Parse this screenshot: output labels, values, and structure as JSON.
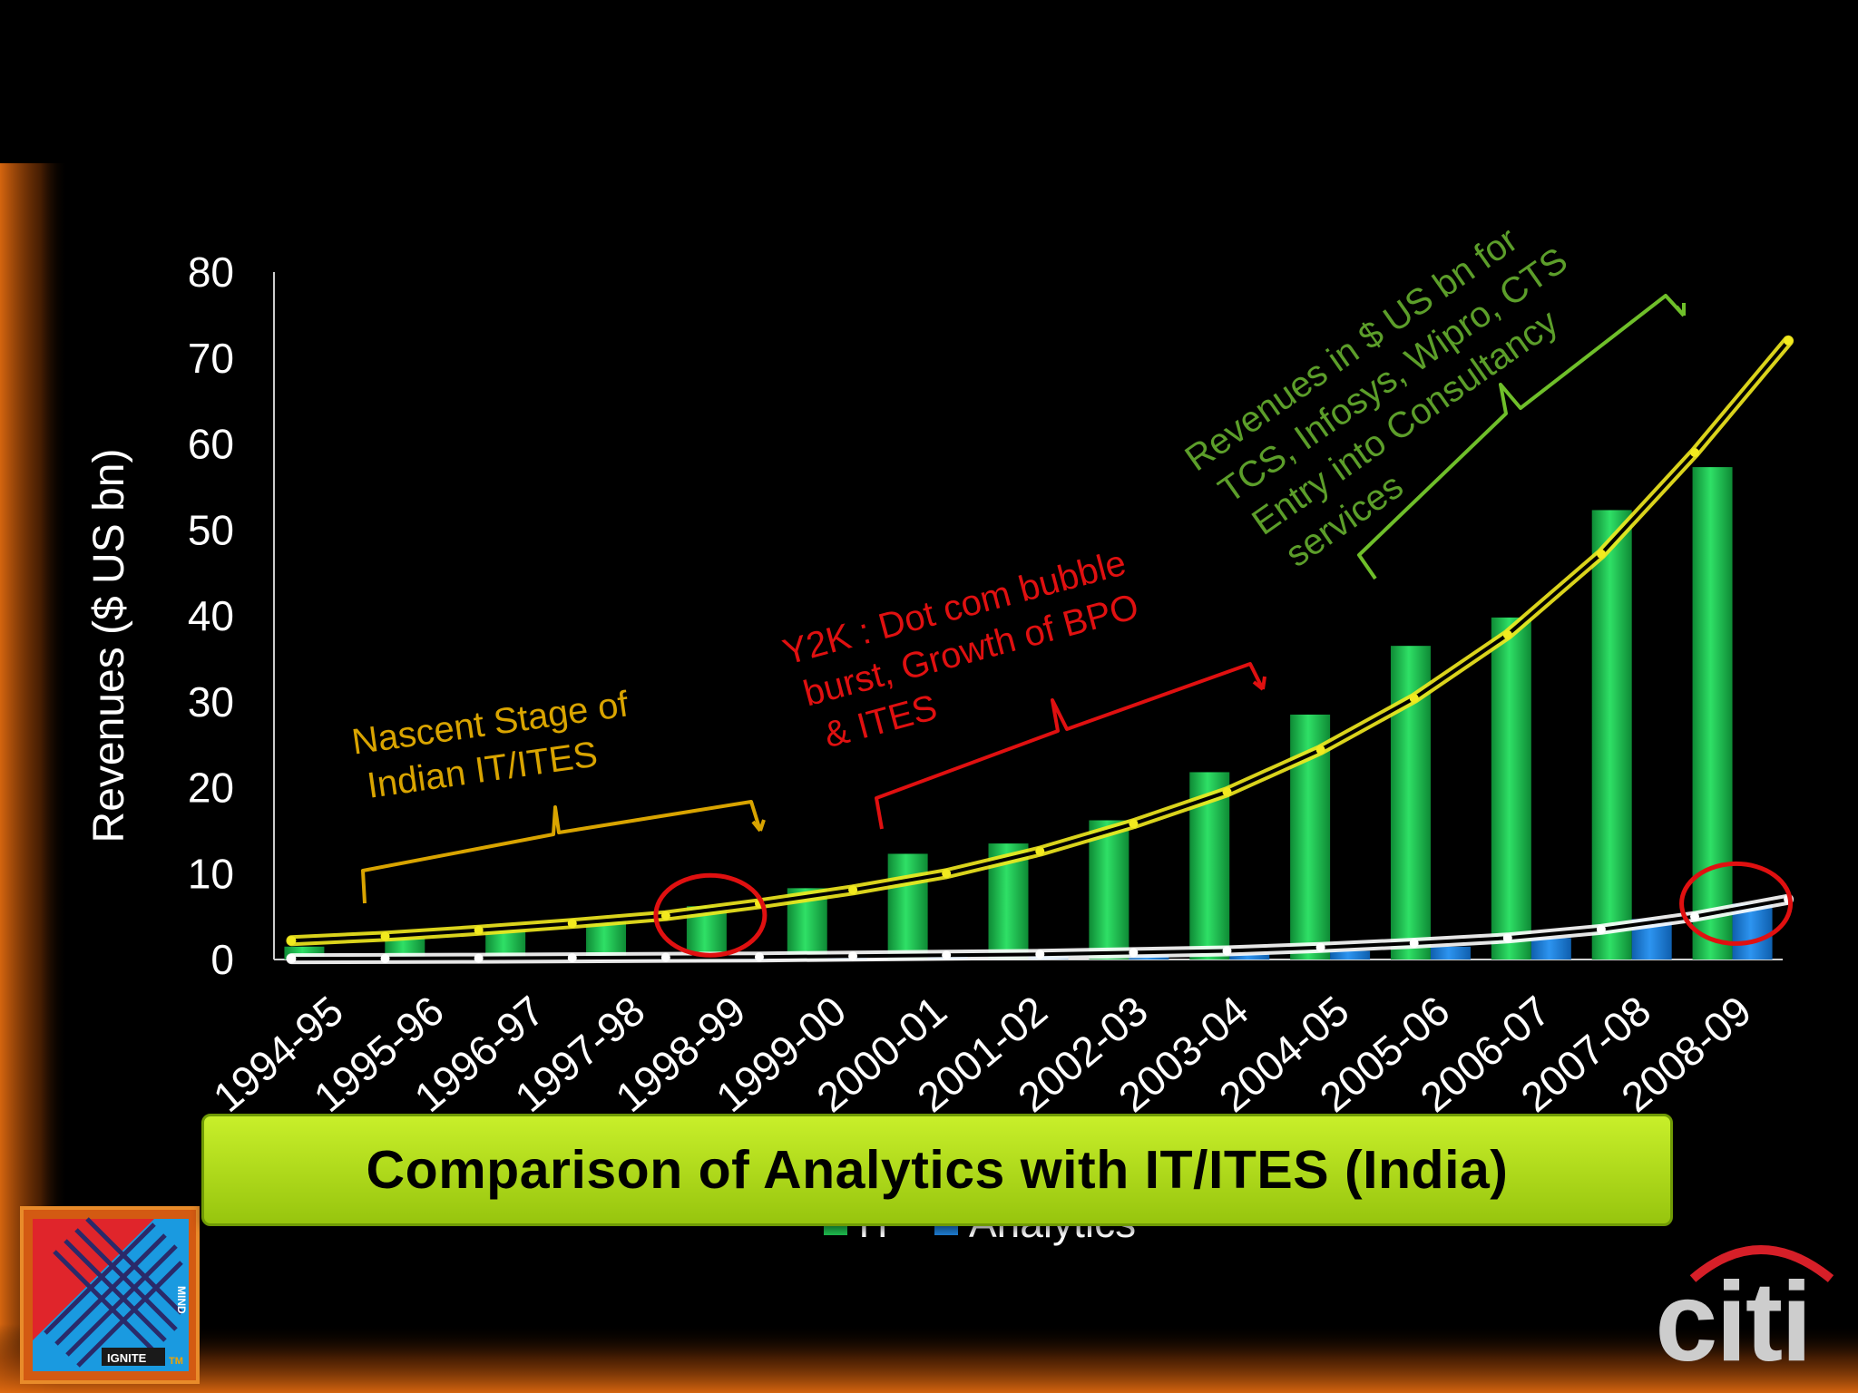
{
  "slide": {
    "caption": "Comparison of Analytics with IT/ITES (India)",
    "logo_left": {
      "text_1": "IGNITE",
      "text_2": "MIND",
      "text_3": "TM"
    },
    "logo_right": {
      "text": "citi"
    }
  },
  "annotations": {
    "nascent": {
      "line1": "Nascent Stage of",
      "line2": "Indian IT/ITES",
      "color": "#d9a400"
    },
    "y2k": {
      "line1": "Y2K : Dot com bubble",
      "line2": "burst, Growth of BPO",
      "line3": "& ITES",
      "color": "#e01010"
    },
    "revenues": {
      "line1": "Revenues in $ US bn for",
      "line2": "TCS, Infosys, Wipro, CTS",
      "line3": "Entry into Consultancy",
      "line4": "services",
      "color": "#5c9e2a"
    }
  },
  "chart_data": {
    "type": "bar",
    "categories": [
      "1994-95",
      "1995-96",
      "1996-97",
      "1997-98",
      "1998-99",
      "1999-00",
      "2000-01",
      "2001-02",
      "2002-03",
      "2003-04",
      "2004-05",
      "2005-06",
      "2006-07",
      "2007-08",
      "2008-09"
    ],
    "series": [
      {
        "name": "IT",
        "color": "#1fbf4f",
        "values": [
          1.5,
          2.5,
          3.5,
          4.5,
          6.2,
          8.3,
          12.3,
          13.5,
          16.2,
          21.8,
          28.5,
          36.5,
          39.8,
          52.3,
          57.3
        ]
      },
      {
        "name": "Analytics",
        "color": "#1e7fd6",
        "values": [
          0.05,
          0.08,
          0.1,
          0.15,
          0.2,
          0.3,
          0.35,
          0.4,
          0.5,
          0.6,
          1.0,
          1.5,
          2.5,
          4.7,
          6.5
        ]
      }
    ],
    "trendlines": [
      {
        "series": "IT",
        "color": "#f2ea1f",
        "values": [
          2.2,
          2.7,
          3.4,
          4.2,
          5.1,
          6.5,
          8.1,
          10.0,
          12.6,
          15.8,
          19.5,
          24.4,
          30.4,
          37.8,
          47.2,
          59.0,
          72.0
        ]
      },
      {
        "series": "Analytics",
        "color": "#ffffff",
        "values": [
          0.1,
          0.12,
          0.15,
          0.2,
          0.25,
          0.3,
          0.4,
          0.5,
          0.6,
          0.8,
          1.0,
          1.4,
          1.9,
          2.5,
          3.5,
          5.0,
          7.0
        ]
      }
    ],
    "ylabel": "Revenues ($ US bn)",
    "ylim": [
      0,
      80
    ],
    "yticks": [
      "0",
      "10",
      "20",
      "30",
      "40",
      "50",
      "60",
      "70",
      "80"
    ],
    "highlighted_categories": [
      "1998-99",
      "2008-09"
    ],
    "legend": {
      "position": "bottom",
      "entries": [
        "IT",
        "Analytics"
      ]
    },
    "grid": false
  }
}
